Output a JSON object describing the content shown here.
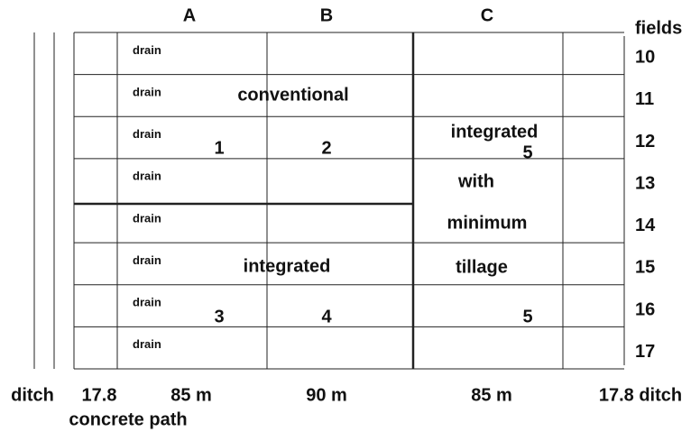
{
  "columns": [
    "A",
    "B",
    "C"
  ],
  "fields_label": "fields",
  "fields": [
    "10",
    "11",
    "12",
    "13",
    "14",
    "15",
    "16",
    "17"
  ],
  "drain": "drain",
  "plots": {
    "conventional": "conventional",
    "plot_1": "1",
    "plot_2": "2",
    "integrated_min_a": "integrated",
    "plot_5_top": "5",
    "with": "with",
    "minimum": "minimum",
    "tillage": "tillage",
    "integrated": "integrated",
    "plot_3": "3",
    "plot_4": "4",
    "plot_5_bottom": "5"
  },
  "bottom": {
    "ditch_left": "ditch",
    "path_left": "17.8",
    "width_a": "85 m",
    "width_b": "90 m",
    "width_c": "85 m",
    "path_right_ditch": "17.8 ditch",
    "concrete_path": "concrete path"
  }
}
